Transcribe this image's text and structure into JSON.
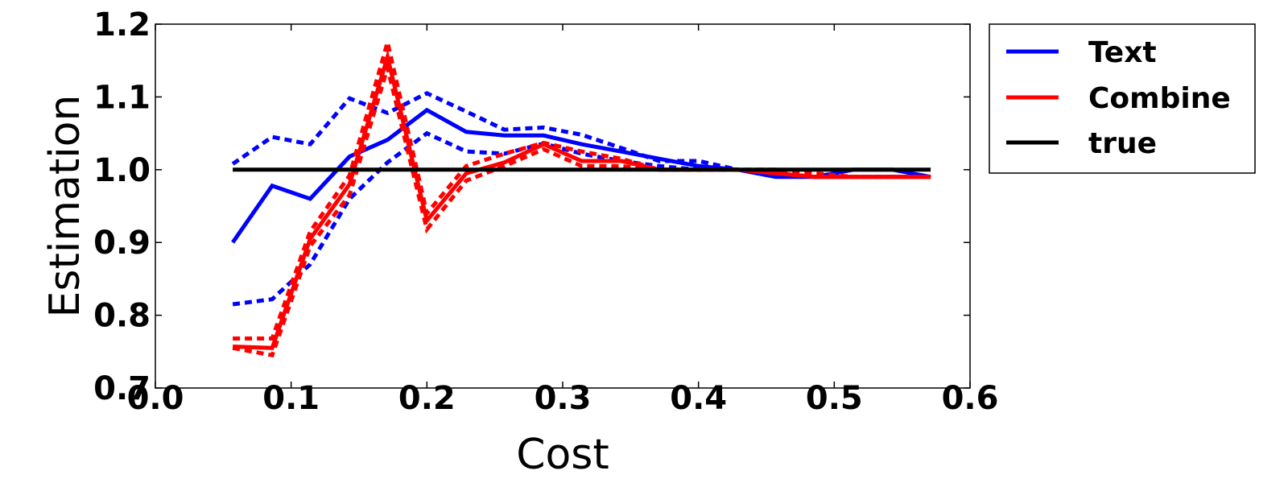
{
  "chart_data": {
    "type": "line",
    "xlabel": "Cost",
    "ylabel": "Estimation",
    "xlim": [
      0.0,
      0.6
    ],
    "ylim": [
      0.7,
      1.2
    ],
    "xticks": [
      "0.0",
      "0.1",
      "0.2",
      "0.3",
      "0.4",
      "0.5",
      "0.6"
    ],
    "yticks": [
      "0.7",
      "0.8",
      "0.9",
      "1.0",
      "1.1",
      "1.2"
    ],
    "grid": false,
    "legend_position": "outside-top-right",
    "x": [
      0.057,
      0.086,
      0.114,
      0.143,
      0.171,
      0.2,
      0.229,
      0.257,
      0.286,
      0.314,
      0.343,
      0.371,
      0.4,
      0.429,
      0.457,
      0.486,
      0.514,
      0.543,
      0.571
    ],
    "series": [
      {
        "name": "Text",
        "color": "#0000ff",
        "style": "solid",
        "values": [
          0.9,
          0.978,
          0.96,
          1.018,
          1.041,
          1.082,
          1.052,
          1.047,
          1.047,
          1.035,
          1.025,
          1.015,
          1.005,
          1.0,
          0.99,
          0.99,
          1.0,
          1.0,
          0.99
        ]
      },
      {
        "name": "",
        "color": "#0000ff",
        "style": "dashed",
        "values": [
          1.008,
          1.045,
          1.035,
          1.098,
          1.078,
          1.105,
          1.08,
          1.055,
          1.058,
          1.048,
          1.03,
          1.012,
          1.012,
          1.0,
          0.995,
          0.99,
          0.99,
          0.99,
          0.99
        ]
      },
      {
        "name": "",
        "color": "#0000ff",
        "style": "dashed",
        "values": [
          0.815,
          0.822,
          0.87,
          0.96,
          1.01,
          1.05,
          1.025,
          1.022,
          1.036,
          1.022,
          1.012,
          1.005,
          1.0,
          1.0,
          0.995,
          0.99,
          0.99,
          0.99,
          0.99
        ]
      },
      {
        "name": "Combine",
        "color": "#ff0000",
        "style": "solid",
        "values": [
          0.757,
          0.755,
          0.905,
          0.98,
          1.155,
          0.93,
          0.995,
          1.01,
          1.035,
          1.012,
          1.012,
          1.0,
          1.0,
          1.0,
          0.995,
          0.99,
          0.99,
          0.99,
          0.99
        ]
      },
      {
        "name": "",
        "color": "#ff0000",
        "style": "dashed",
        "values": [
          0.768,
          0.768,
          0.915,
          0.992,
          1.175,
          0.94,
          1.005,
          1.022,
          1.037,
          1.025,
          1.015,
          1.0,
          1.0,
          1.0,
          1.0,
          0.995,
          0.99,
          0.99,
          0.99
        ]
      },
      {
        "name": "",
        "color": "#ff0000",
        "style": "dashed",
        "values": [
          0.755,
          0.745,
          0.895,
          0.965,
          1.14,
          0.918,
          0.985,
          1.005,
          1.028,
          1.005,
          1.005,
          1.0,
          1.0,
          1.0,
          0.995,
          0.99,
          0.99,
          0.99,
          0.99
        ]
      },
      {
        "name": "true",
        "color": "#000000",
        "style": "solid",
        "values": [
          1.0,
          1.0,
          1.0,
          1.0,
          1.0,
          1.0,
          1.0,
          1.0,
          1.0,
          1.0,
          1.0,
          1.0,
          1.0,
          1.0,
          1.0,
          1.0,
          1.0,
          1.0,
          1.0
        ]
      }
    ],
    "legend": [
      {
        "label": "Text",
        "color": "#0000ff"
      },
      {
        "label": "Combine",
        "color": "#ff0000"
      },
      {
        "label": "true",
        "color": "#000000"
      }
    ]
  }
}
